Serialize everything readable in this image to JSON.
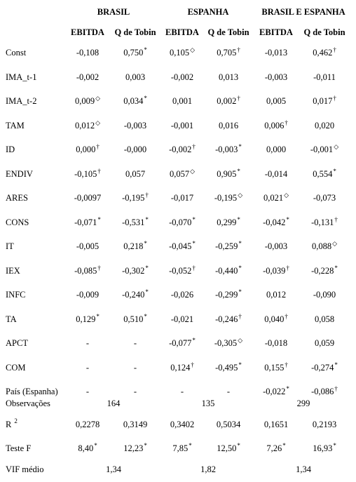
{
  "groups": [
    "BRASIL",
    "ESPANHA",
    "BRASIL E ESPANHA"
  ],
  "subheaders": [
    "EBITDA",
    "Q de Tobin",
    "EBITDA",
    "Q de Tobin",
    "EBITDA",
    "Q de Tobin"
  ],
  "rows": [
    {
      "label": "Const",
      "cells": [
        [
          "-0,108",
          ""
        ],
        [
          "0,750",
          "*"
        ],
        [
          "0,105",
          "◇"
        ],
        [
          "0,705",
          "†"
        ],
        [
          "-0,013",
          ""
        ],
        [
          "0,462",
          "†"
        ]
      ]
    },
    {
      "label": "IMA_t-1",
      "cells": [
        [
          "-0,002",
          ""
        ],
        [
          "0,003",
          ""
        ],
        [
          "-0,002",
          ""
        ],
        [
          "0,013",
          ""
        ],
        [
          "-0,003",
          ""
        ],
        [
          "-0,011",
          ""
        ]
      ]
    },
    {
      "label": "IMA_t-2",
      "cells": [
        [
          "0,009",
          "◇"
        ],
        [
          "0,034",
          "*"
        ],
        [
          "0,001",
          ""
        ],
        [
          "0,002",
          "†"
        ],
        [
          "0,005",
          ""
        ],
        [
          "0,017",
          "†"
        ]
      ]
    },
    {
      "label": "TAM",
      "cells": [
        [
          "0,012",
          "◇"
        ],
        [
          "-0,003",
          ""
        ],
        [
          "-0,001",
          ""
        ],
        [
          "0,016",
          ""
        ],
        [
          "0,006",
          "†"
        ],
        [
          "0,020",
          ""
        ]
      ]
    },
    {
      "label": "ID",
      "cells": [
        [
          "0,000",
          "†"
        ],
        [
          "-0,000",
          ""
        ],
        [
          "-0,002",
          "†"
        ],
        [
          "-0,003",
          "*"
        ],
        [
          "0,000",
          ""
        ],
        [
          "-0,001",
          "◇"
        ]
      ]
    },
    {
      "label": "ENDIV",
      "cells": [
        [
          "-0,105",
          "†"
        ],
        [
          "0,057",
          ""
        ],
        [
          "0,057",
          "◇"
        ],
        [
          "0,905",
          "*"
        ],
        [
          "-0,014",
          ""
        ],
        [
          "0,554",
          "*"
        ]
      ]
    },
    {
      "label": "ARES",
      "cells": [
        [
          "-0,0097",
          ""
        ],
        [
          "-0,195",
          "†"
        ],
        [
          "-0,017",
          ""
        ],
        [
          "-0,195",
          "◇"
        ],
        [
          "0,021",
          "◇"
        ],
        [
          "-0,073",
          ""
        ]
      ]
    },
    {
      "label": "CONS",
      "cells": [
        [
          "-0,071",
          "*"
        ],
        [
          "-0,531",
          "*"
        ],
        [
          "-0,070",
          "*"
        ],
        [
          "0,299",
          "*"
        ],
        [
          "-0,042",
          "*"
        ],
        [
          "-0,131",
          "†"
        ]
      ]
    },
    {
      "label": "IT",
      "cells": [
        [
          "-0,005",
          ""
        ],
        [
          "0,218",
          "*"
        ],
        [
          "-0,045",
          "*"
        ],
        [
          "-0,259",
          "*"
        ],
        [
          "-0,003",
          ""
        ],
        [
          "0,088",
          "◇"
        ]
      ]
    },
    {
      "label": "IEX",
      "cells": [
        [
          "-0,085",
          "†"
        ],
        [
          "-0,302",
          "*"
        ],
        [
          "-0,052",
          "†"
        ],
        [
          "-0,440",
          "*"
        ],
        [
          "-0,039",
          "†"
        ],
        [
          "-0,228",
          "*"
        ]
      ]
    },
    {
      "label": "INFC",
      "cells": [
        [
          "-0,009",
          ""
        ],
        [
          "-0,240",
          "*"
        ],
        [
          "-0,026",
          ""
        ],
        [
          "-0,299",
          "*"
        ],
        [
          "0,012",
          ""
        ],
        [
          "-0,090",
          ""
        ]
      ]
    },
    {
      "label": "TA",
      "cells": [
        [
          "0,129",
          "*"
        ],
        [
          "0,510",
          "*"
        ],
        [
          "-0,021",
          ""
        ],
        [
          "-0,246",
          "†"
        ],
        [
          "0,040",
          "†"
        ],
        [
          "0,058",
          ""
        ]
      ]
    },
    {
      "label": "APCT",
      "cells": [
        [
          "-",
          ""
        ],
        [
          "-",
          ""
        ],
        [
          "-0,077",
          "*"
        ],
        [
          "-0,305",
          "◇"
        ],
        [
          "-0,018",
          ""
        ],
        [
          "0,059",
          ""
        ]
      ]
    },
    {
      "label": "COM",
      "cells": [
        [
          "-",
          ""
        ],
        [
          "-",
          ""
        ],
        [
          "0,124",
          "†"
        ],
        [
          "-0,495",
          "*"
        ],
        [
          "0,155",
          "†"
        ],
        [
          "-0,274",
          "*"
        ]
      ]
    },
    {
      "label": "País (Espanha)",
      "cells": [
        [
          "-",
          ""
        ],
        [
          "-",
          ""
        ],
        [
          "-",
          ""
        ],
        [
          "-",
          ""
        ],
        [
          "-0,022",
          "*"
        ],
        [
          "-0,086",
          "†"
        ]
      ]
    }
  ],
  "observacoes": {
    "label": "Observações",
    "values": [
      "164",
      "135",
      "299"
    ]
  },
  "r2": {
    "label": "R",
    "sup": "2",
    "values": [
      "0,2278",
      "0,3149",
      "0,3402",
      "0,5034",
      "0,1651",
      "0,2193"
    ]
  },
  "testeF": {
    "label": "Teste F",
    "cells": [
      [
        "8,40",
        "*"
      ],
      [
        "12,23",
        "*"
      ],
      [
        "7,85",
        "*"
      ],
      [
        "12,50",
        "*"
      ],
      [
        "7,26",
        "*"
      ],
      [
        "16,93",
        "*"
      ]
    ]
  },
  "vif": {
    "label": "VIF médio",
    "values": [
      "1,34",
      "1,82",
      "1,34"
    ]
  }
}
